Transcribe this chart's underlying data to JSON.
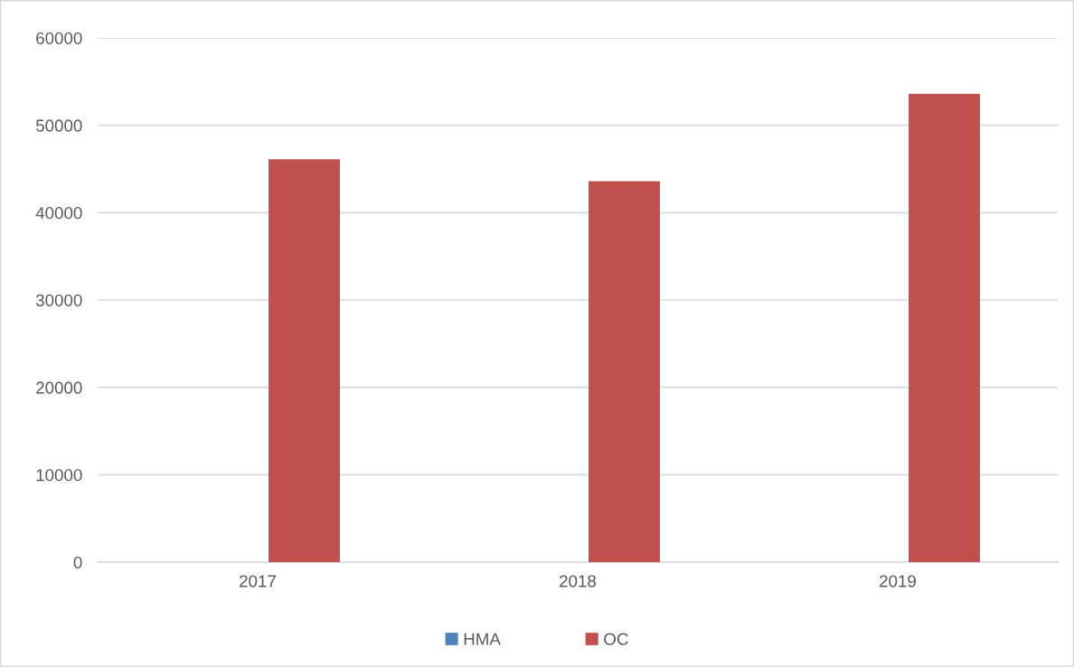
{
  "chart_data": {
    "type": "bar",
    "categories": [
      "2017",
      "2018",
      "2019"
    ],
    "series": [
      {
        "name": "HMA",
        "color": "#4f81bd",
        "values": [
          0,
          0,
          0
        ]
      },
      {
        "name": "OC",
        "color": "#c0504d",
        "values": [
          46100,
          43600,
          53600
        ]
      }
    ],
    "ylim": [
      0,
      60000
    ],
    "yticks": [
      0,
      10000,
      20000,
      30000,
      40000,
      50000,
      60000
    ],
    "grid": "y",
    "legend": "bottom"
  }
}
